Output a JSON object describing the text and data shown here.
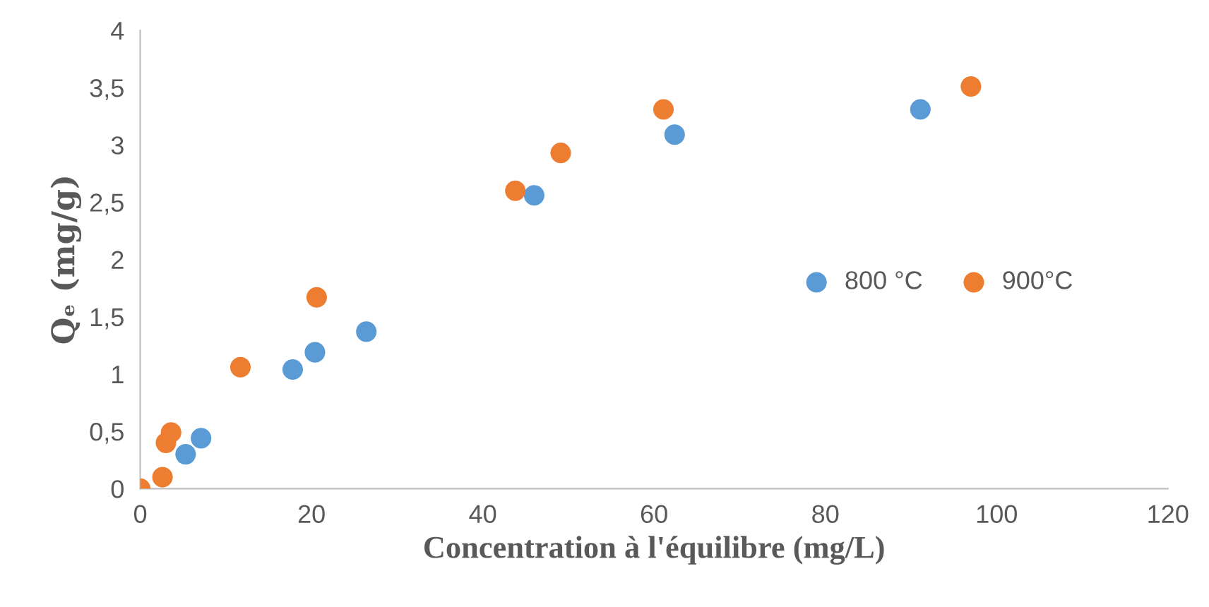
{
  "chart_data": {
    "type": "scatter",
    "xlabel": "Concentration à l'équilibre (mg/L)",
    "ylabel": "Qₑ (mg/g)",
    "xlim": [
      0,
      120
    ],
    "xticks": [
      0,
      20,
      40,
      60,
      80,
      100,
      120
    ],
    "ylim": [
      0,
      4
    ],
    "yticks": [
      0,
      {
        "value": 0.5,
        "label": "0,5"
      },
      1,
      {
        "value": 1.5,
        "label": "1,5"
      },
      2,
      {
        "value": 2.5,
        "label": "2,5"
      },
      3,
      {
        "value": 3.5,
        "label": "3,5"
      },
      4
    ],
    "grid": false,
    "legend": "right",
    "marker": "circle",
    "series": [
      {
        "name": "800 °C",
        "color": "#5b9bd5",
        "x": [
          5.3,
          7.1,
          17.8,
          20.4,
          26.4,
          46.0,
          62.4,
          91.1
        ],
        "values": [
          0.3,
          0.44,
          1.04,
          1.19,
          1.37,
          2.56,
          3.09,
          3.31
        ]
      },
      {
        "name": "900°C",
        "color": "#ed7d31",
        "x": [
          0,
          2.6,
          3.0,
          3.6,
          11.7,
          20.6,
          43.8,
          49.1,
          61.1,
          97.0
        ],
        "values": [
          0,
          0.1,
          0.4,
          0.49,
          1.06,
          1.67,
          2.6,
          2.93,
          3.31,
          3.51
        ]
      }
    ]
  }
}
